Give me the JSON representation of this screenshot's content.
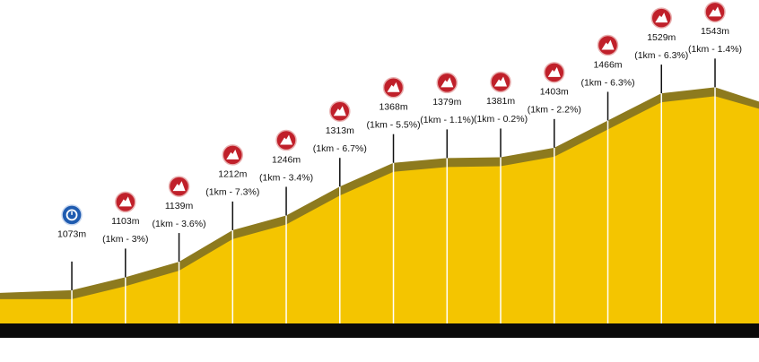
{
  "chart_data": {
    "type": "area",
    "x": [
      0,
      1,
      2,
      3,
      4,
      5,
      6,
      7,
      8,
      9,
      10,
      11,
      12
    ],
    "values": [
      1073,
      1103,
      1139,
      1212,
      1246,
      1313,
      1368,
      1379,
      1381,
      1403,
      1466,
      1529,
      1543
    ],
    "value_labels": [
      "1073m",
      "1103m",
      "1139m",
      "1212m",
      "1246m",
      "1313m",
      "1368m",
      "1379m",
      "1381m",
      "1403m",
      "1466m",
      "1529m",
      "1543m"
    ],
    "annotations": [
      {
        "x": 1,
        "text": "(1km - 3%)"
      },
      {
        "x": 2,
        "text": "(1km - 3.6%)"
      },
      {
        "x": 3,
        "text": "(1km - 7.3%)"
      },
      {
        "x": 4,
        "text": "(1km - 3.4%)"
      },
      {
        "x": 5,
        "text": "(1km - 6.7%)"
      },
      {
        "x": 6,
        "text": "(1km - 5.5%)"
      },
      {
        "x": 7,
        "text": "(1km - 1.1%)"
      },
      {
        "x": 8,
        "text": "(1km - 0.2%)"
      },
      {
        "x": 9,
        "text": "(1km - 2.2%)"
      },
      {
        "x": 10,
        "text": "(1km - 6.3%)"
      },
      {
        "x": 11,
        "text": "(1km - 6.3%)"
      },
      {
        "x": 12,
        "text": "(1km - 1.4%)"
      }
    ],
    "xlim": [
      -1.34,
      12.82
    ],
    "ylim": [
      996,
      1745
    ],
    "color": "#f4c500",
    "edge_color": "#8d7a1e"
  }
}
